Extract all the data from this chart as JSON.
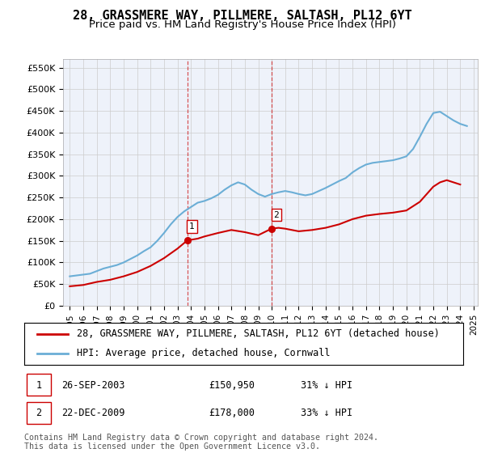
{
  "title": "28, GRASSMERE WAY, PILLMERE, SALTASH, PL12 6YT",
  "subtitle": "Price paid vs. HM Land Registry's House Price Index (HPI)",
  "ylim": [
    0,
    570000
  ],
  "yticks": [
    0,
    50000,
    100000,
    150000,
    200000,
    250000,
    300000,
    350000,
    400000,
    450000,
    500000,
    550000
  ],
  "ytick_labels": [
    "£0",
    "£50K",
    "£100K",
    "£150K",
    "£200K",
    "£250K",
    "£300K",
    "£350K",
    "£400K",
    "£450K",
    "£500K",
    "£550K"
  ],
  "sale1_x": 2003.73,
  "sale1_price": 150950,
  "sale2_x": 2009.98,
  "sale2_price": 178000,
  "hpi_color": "#6baed6",
  "price_color": "#cc0000",
  "vline_color": "#cc0000",
  "background_color": "#eef2fa",
  "plot_bg": "#ffffff",
  "legend_label_price": "28, GRASSMERE WAY, PILLMERE, SALTASH, PL12 6YT (detached house)",
  "legend_label_hpi": "HPI: Average price, detached house, Cornwall",
  "table_row1": [
    "1",
    "26-SEP-2003",
    "£150,950",
    "31% ↓ HPI"
  ],
  "table_row2": [
    "2",
    "22-DEC-2009",
    "£178,000",
    "33% ↓ HPI"
  ],
  "footer": "Contains HM Land Registry data © Crown copyright and database right 2024.\nThis data is licensed under the Open Government Licence v3.0.",
  "title_fontsize": 11,
  "subtitle_fontsize": 9.5,
  "tick_fontsize": 8,
  "legend_fontsize": 8.5,
  "table_fontsize": 8.5,
  "footer_fontsize": 7.2
}
